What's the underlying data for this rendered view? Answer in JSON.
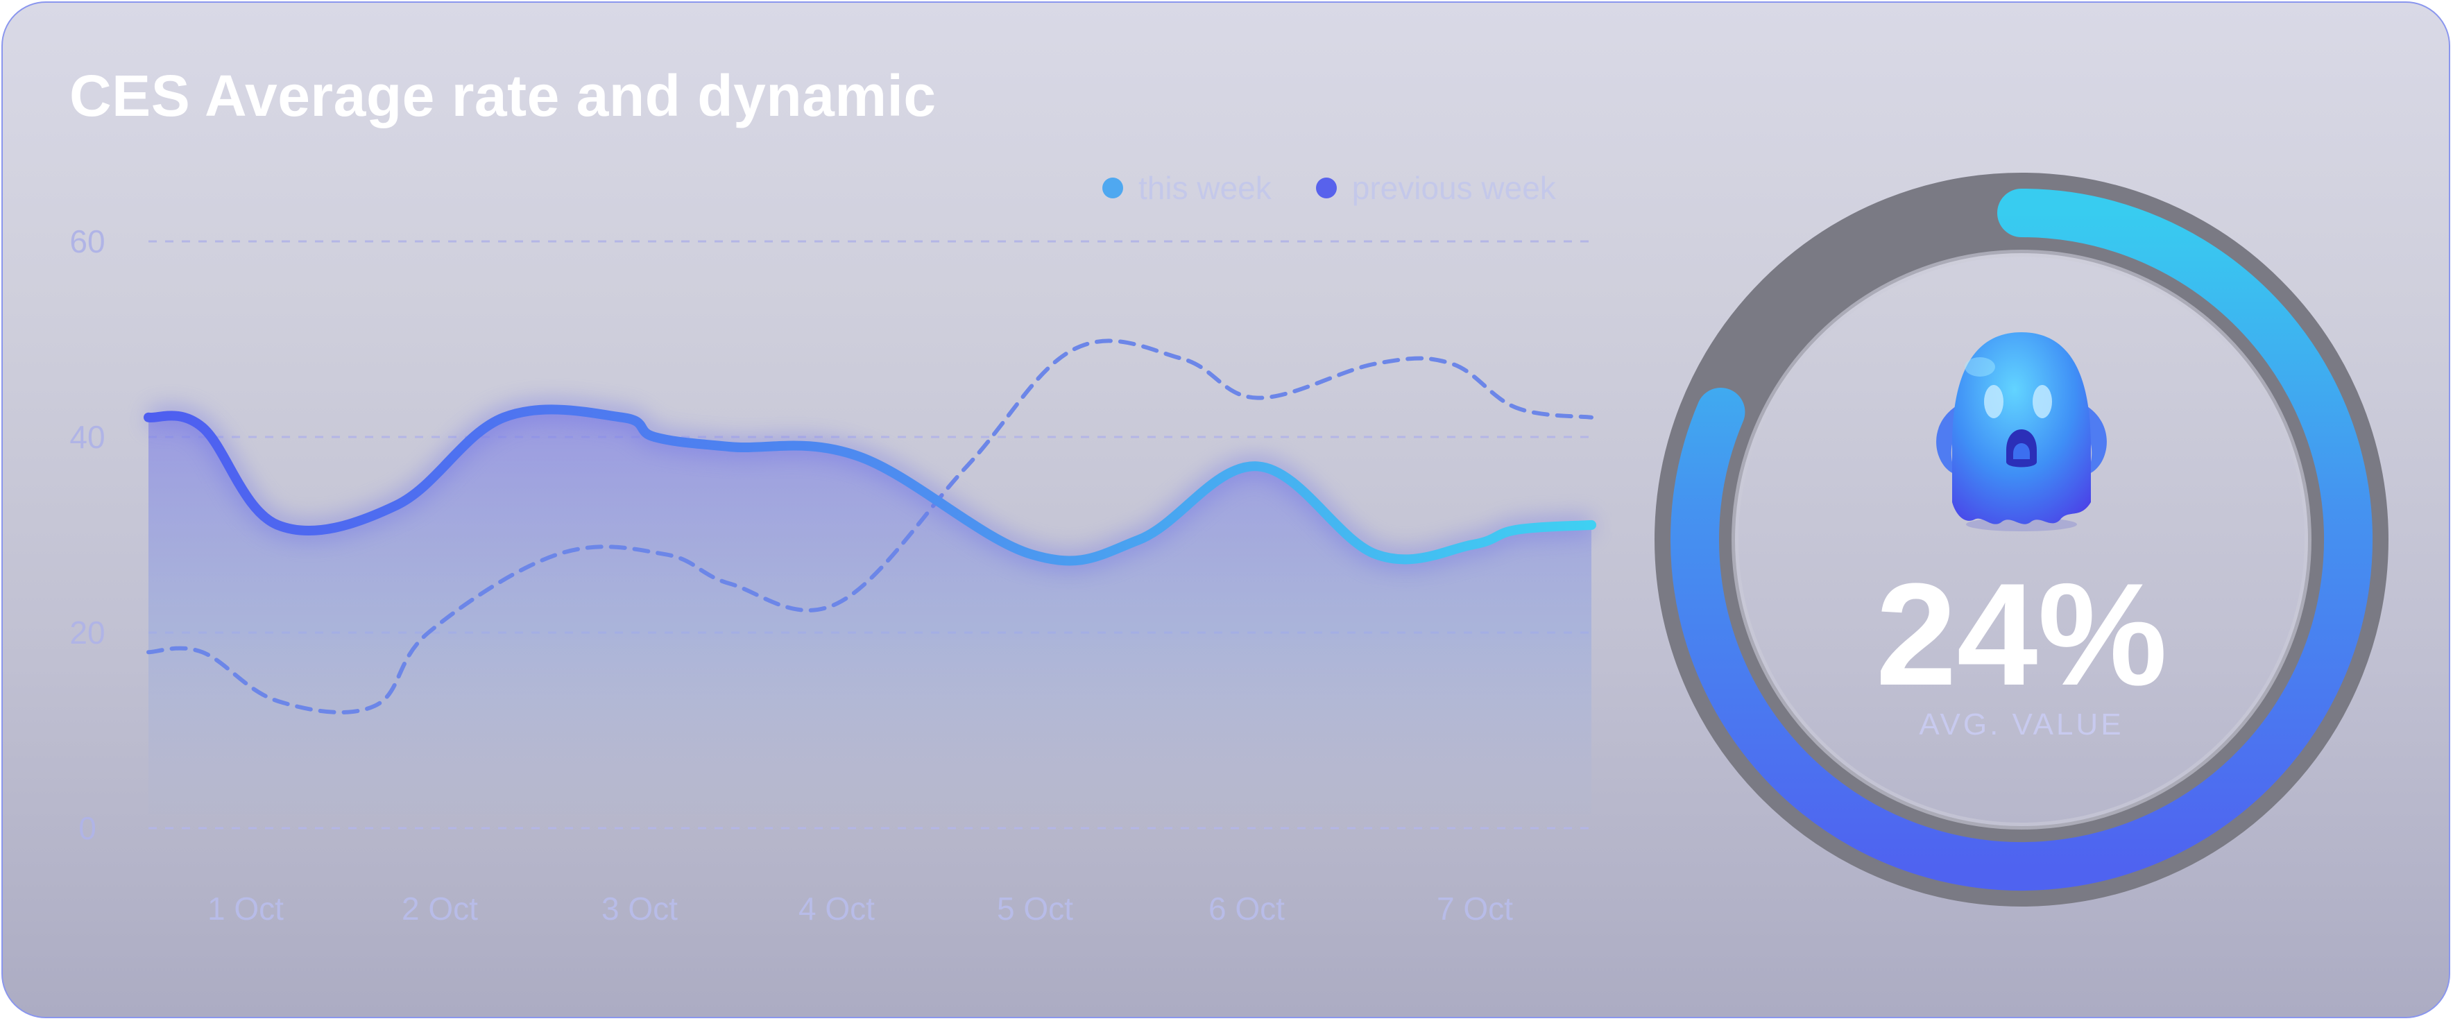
{
  "chart_data": {
    "type": "line",
    "title": "CES Average rate and dynamic",
    "categories": [
      "1 Oct",
      "2 Oct",
      "3 Oct",
      "4 Oct",
      "5 Oct",
      "6 Oct",
      "7 Oct"
    ],
    "y_ticks": [
      "0",
      "20",
      "40",
      "60"
    ],
    "ylim": [
      0,
      60
    ],
    "grid": "horizontal dashed",
    "legend_position": "top-right",
    "series": [
      {
        "name": "this week",
        "color": "#4fa8f0",
        "style": "solid, filled area",
        "x": [
          0,
          0.25,
          0.6,
          1.15,
          1.65,
          2.2,
          2.35,
          2.7,
          3.3,
          4.1,
          4.6,
          5.15,
          5.7,
          6.15,
          6.35,
          6.7
        ],
        "values": [
          42,
          41,
          31,
          33,
          42,
          42,
          40,
          39,
          38,
          28,
          29.5,
          37,
          28,
          29,
          30.5,
          31
        ]
      },
      {
        "name": "previous week",
        "color": "#5862ec",
        "style": "dashed",
        "x": [
          0,
          0.25,
          0.6,
          1.05,
          1.3,
          1.9,
          2.4,
          2.7,
          3.2,
          3.8,
          4.3,
          4.8,
          5.15,
          5.7,
          6.05,
          6.35,
          6.7
        ],
        "values": [
          18,
          18,
          13,
          12.5,
          20,
          28,
          28,
          25,
          23,
          37,
          49,
          48,
          44,
          47.5,
          47.5,
          43,
          42
        ]
      }
    ]
  },
  "gauge": {
    "value_label": "24%",
    "value": 0.24,
    "caption": "AVG. VALUE",
    "icon": "ghost-icon",
    "colors": {
      "track": "#7a7a84",
      "arc_start": "#4f63f0",
      "arc_end": "#38ccf0"
    }
  }
}
